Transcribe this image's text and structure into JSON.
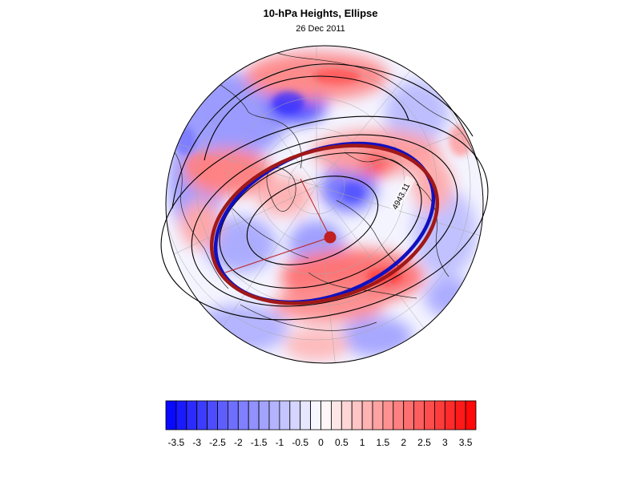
{
  "title": "10-hPa Heights, Ellipse",
  "subtitle": "26 Dec 2011",
  "contour_label": "4943.11",
  "colors": {
    "negative_max": "#0000ff",
    "zero": "#ffffff",
    "positive_max": "#ff0000",
    "ellipse_blue": "#1010c0",
    "ellipse_red": "#a01818",
    "center_marker": "#c02020"
  },
  "legend": {
    "tick_labels": [
      "-3.5",
      "-3",
      "-2.5",
      "-2",
      "-1.5",
      "-1",
      "-0.5",
      "0",
      "0.5",
      "1",
      "1.5",
      "2",
      "2.5",
      "3",
      "3.5"
    ],
    "range": [
      -3.75,
      3.75
    ],
    "step": 0.25
  }
}
